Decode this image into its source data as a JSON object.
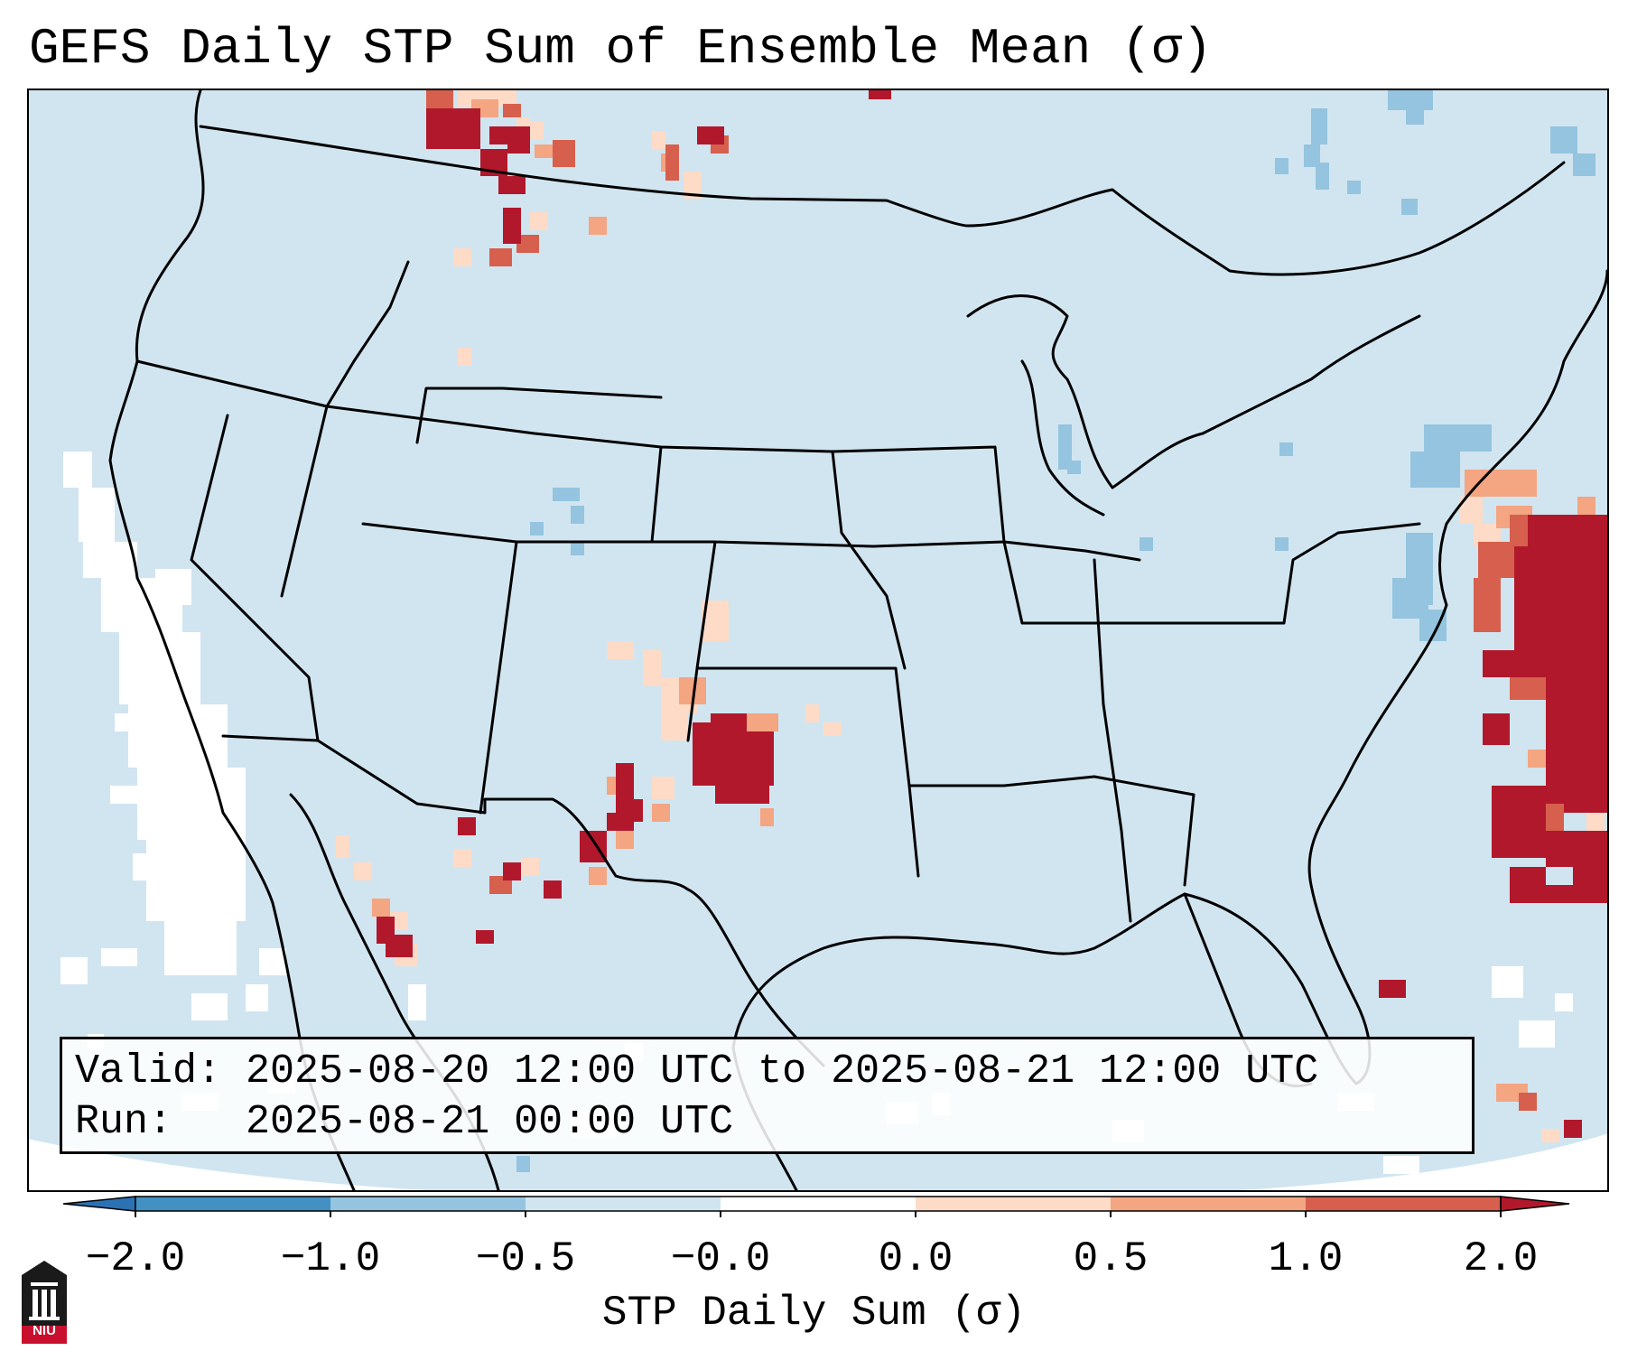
{
  "title": "GEFS Daily STP Sum of Ensemble Mean (σ)",
  "info": {
    "valid_line": "Valid: 2025-08-20 12:00 UTC to 2025-08-21 12:00 UTC",
    "run_line": "Run:   2025-08-21 00:00 UTC"
  },
  "colorbar": {
    "label": "STP Daily Sum (σ)",
    "ticks": [
      "−2.0",
      "−1.0",
      "−0.5",
      "−0.0",
      "0.0",
      "0.5",
      "1.0",
      "2.0"
    ],
    "colors": {
      "under": "#2b72b4",
      "lt_-1": "#4390c3",
      "lt_-0.5": "#94c4df",
      "lt_0": "#d1e5f0",
      "zero": "#ffffff",
      "lt_0.5": "#fddbc7",
      "lt_1": "#f4a582",
      "lt_2": "#d6604d",
      "over": "#b2182b"
    }
  },
  "logo": {
    "text": "NIU",
    "color": "#c8102e"
  }
}
